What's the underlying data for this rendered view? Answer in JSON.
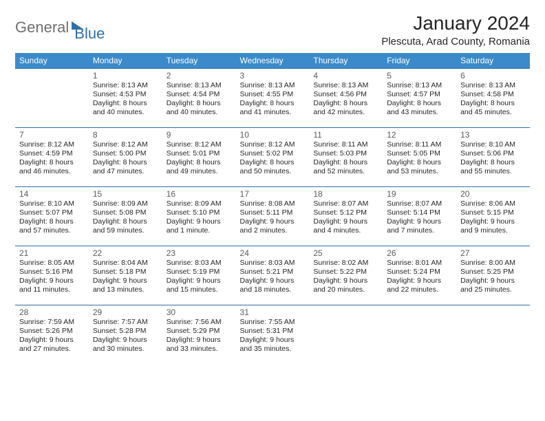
{
  "logo": {
    "part1": "General",
    "part2": "Blue"
  },
  "title": "January 2024",
  "location": "Plescuta, Arad County, Romania",
  "brand_color": "#3b8bca",
  "border_color": "#2f6fa8",
  "weekdays": [
    "Sunday",
    "Monday",
    "Tuesday",
    "Wednesday",
    "Thursday",
    "Friday",
    "Saturday"
  ],
  "start_weekday": 1,
  "days": [
    {
      "n": 1,
      "sr": "8:13 AM",
      "ss": "4:53 PM",
      "dl": "8 hours and 40 minutes."
    },
    {
      "n": 2,
      "sr": "8:13 AM",
      "ss": "4:54 PM",
      "dl": "8 hours and 40 minutes."
    },
    {
      "n": 3,
      "sr": "8:13 AM",
      "ss": "4:55 PM",
      "dl": "8 hours and 41 minutes."
    },
    {
      "n": 4,
      "sr": "8:13 AM",
      "ss": "4:56 PM",
      "dl": "8 hours and 42 minutes."
    },
    {
      "n": 5,
      "sr": "8:13 AM",
      "ss": "4:57 PM",
      "dl": "8 hours and 43 minutes."
    },
    {
      "n": 6,
      "sr": "8:13 AM",
      "ss": "4:58 PM",
      "dl": "8 hours and 45 minutes."
    },
    {
      "n": 7,
      "sr": "8:12 AM",
      "ss": "4:59 PM",
      "dl": "8 hours and 46 minutes."
    },
    {
      "n": 8,
      "sr": "8:12 AM",
      "ss": "5:00 PM",
      "dl": "8 hours and 47 minutes."
    },
    {
      "n": 9,
      "sr": "8:12 AM",
      "ss": "5:01 PM",
      "dl": "8 hours and 49 minutes."
    },
    {
      "n": 10,
      "sr": "8:12 AM",
      "ss": "5:02 PM",
      "dl": "8 hours and 50 minutes."
    },
    {
      "n": 11,
      "sr": "8:11 AM",
      "ss": "5:03 PM",
      "dl": "8 hours and 52 minutes."
    },
    {
      "n": 12,
      "sr": "8:11 AM",
      "ss": "5:05 PM",
      "dl": "8 hours and 53 minutes."
    },
    {
      "n": 13,
      "sr": "8:10 AM",
      "ss": "5:06 PM",
      "dl": "8 hours and 55 minutes."
    },
    {
      "n": 14,
      "sr": "8:10 AM",
      "ss": "5:07 PM",
      "dl": "8 hours and 57 minutes."
    },
    {
      "n": 15,
      "sr": "8:09 AM",
      "ss": "5:08 PM",
      "dl": "8 hours and 59 minutes."
    },
    {
      "n": 16,
      "sr": "8:09 AM",
      "ss": "5:10 PM",
      "dl": "9 hours and 1 minute."
    },
    {
      "n": 17,
      "sr": "8:08 AM",
      "ss": "5:11 PM",
      "dl": "9 hours and 2 minutes."
    },
    {
      "n": 18,
      "sr": "8:07 AM",
      "ss": "5:12 PM",
      "dl": "9 hours and 4 minutes."
    },
    {
      "n": 19,
      "sr": "8:07 AM",
      "ss": "5:14 PM",
      "dl": "9 hours and 7 minutes."
    },
    {
      "n": 20,
      "sr": "8:06 AM",
      "ss": "5:15 PM",
      "dl": "9 hours and 9 minutes."
    },
    {
      "n": 21,
      "sr": "8:05 AM",
      "ss": "5:16 PM",
      "dl": "9 hours and 11 minutes."
    },
    {
      "n": 22,
      "sr": "8:04 AM",
      "ss": "5:18 PM",
      "dl": "9 hours and 13 minutes."
    },
    {
      "n": 23,
      "sr": "8:03 AM",
      "ss": "5:19 PM",
      "dl": "9 hours and 15 minutes."
    },
    {
      "n": 24,
      "sr": "8:03 AM",
      "ss": "5:21 PM",
      "dl": "9 hours and 18 minutes."
    },
    {
      "n": 25,
      "sr": "8:02 AM",
      "ss": "5:22 PM",
      "dl": "9 hours and 20 minutes."
    },
    {
      "n": 26,
      "sr": "8:01 AM",
      "ss": "5:24 PM",
      "dl": "9 hours and 22 minutes."
    },
    {
      "n": 27,
      "sr": "8:00 AM",
      "ss": "5:25 PM",
      "dl": "9 hours and 25 minutes."
    },
    {
      "n": 28,
      "sr": "7:59 AM",
      "ss": "5:26 PM",
      "dl": "9 hours and 27 minutes."
    },
    {
      "n": 29,
      "sr": "7:57 AM",
      "ss": "5:28 PM",
      "dl": "9 hours and 30 minutes."
    },
    {
      "n": 30,
      "sr": "7:56 AM",
      "ss": "5:29 PM",
      "dl": "9 hours and 33 minutes."
    },
    {
      "n": 31,
      "sr": "7:55 AM",
      "ss": "5:31 PM",
      "dl": "9 hours and 35 minutes."
    }
  ],
  "labels": {
    "sunrise": "Sunrise:",
    "sunset": "Sunset:",
    "daylight": "Daylight:"
  }
}
